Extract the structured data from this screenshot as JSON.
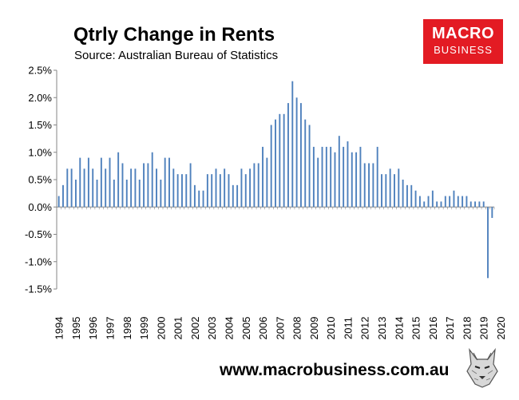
{
  "header": {
    "title": "Qtrly Change in Rents",
    "subtitle": "Source: Australian Bureau of Statistics"
  },
  "logo": {
    "line1": "MACRO",
    "line2": "BUSINESS"
  },
  "footer": {
    "url": "www.macrobusiness.com.au"
  },
  "icons": {
    "mascot": "wolf-mascot-icon"
  },
  "colors": {
    "bar": "#4f81bd",
    "axis": "#868686",
    "logo_bg": "#e31b23"
  },
  "chart_data": {
    "type": "bar",
    "title": "Qtrly Change in Rents",
    "subtitle": "Source: Australian Bureau of Statistics",
    "xlabel": "",
    "ylabel": "",
    "ylim": [
      -1.5,
      2.5
    ],
    "yticks": [
      "2.5%",
      "2.0%",
      "1.5%",
      "1.0%",
      "0.5%",
      "0.0%",
      "-0.5%",
      "-1.0%",
      "-1.5%"
    ],
    "grid": false,
    "legend": "none",
    "xticks": [
      "1994",
      "1995",
      "1996",
      "1997",
      "1998",
      "1999",
      "2000",
      "2001",
      "2002",
      "2003",
      "2004",
      "2005",
      "2006",
      "2007",
      "2008",
      "2009",
      "2010",
      "2011",
      "2012",
      "2013",
      "2014",
      "2015",
      "2016",
      "2017",
      "2018",
      "2019",
      "2020"
    ],
    "series": [
      {
        "unit": "%",
        "values": [
          0.2,
          0.4,
          0.7,
          0.7,
          0.5,
          0.9,
          0.7,
          0.9,
          0.7,
          0.5,
          0.9,
          0.7,
          0.9,
          0.5,
          1.0,
          0.8,
          0.5,
          0.7,
          0.7,
          0.5,
          0.8,
          0.8,
          1.0,
          0.7,
          0.5,
          0.9,
          0.9,
          0.7,
          0.6,
          0.6,
          0.6,
          0.8,
          0.4,
          0.3,
          0.3,
          0.6,
          0.6,
          0.7,
          0.6,
          0.7,
          0.6,
          0.4,
          0.4,
          0.7,
          0.6,
          0.7,
          0.8,
          0.8,
          1.1,
          0.9,
          1.5,
          1.6,
          1.7,
          1.7,
          1.9,
          2.3,
          2.0,
          1.9,
          1.6,
          1.5,
          1.1,
          0.9,
          1.1,
          1.1,
          1.1,
          1.0,
          1.3,
          1.1,
          1.2,
          1.0,
          1.0,
          1.1,
          0.8,
          0.8,
          0.8,
          1.1,
          0.6,
          0.6,
          0.7,
          0.6,
          0.7,
          0.5,
          0.4,
          0.4,
          0.3,
          0.2,
          0.1,
          0.2,
          0.3,
          0.1,
          0.1,
          0.2,
          0.2,
          0.3,
          0.2,
          0.2,
          0.2,
          0.1,
          0.1,
          0.1,
          0.1,
          -1.3,
          -0.2
        ]
      }
    ]
  }
}
